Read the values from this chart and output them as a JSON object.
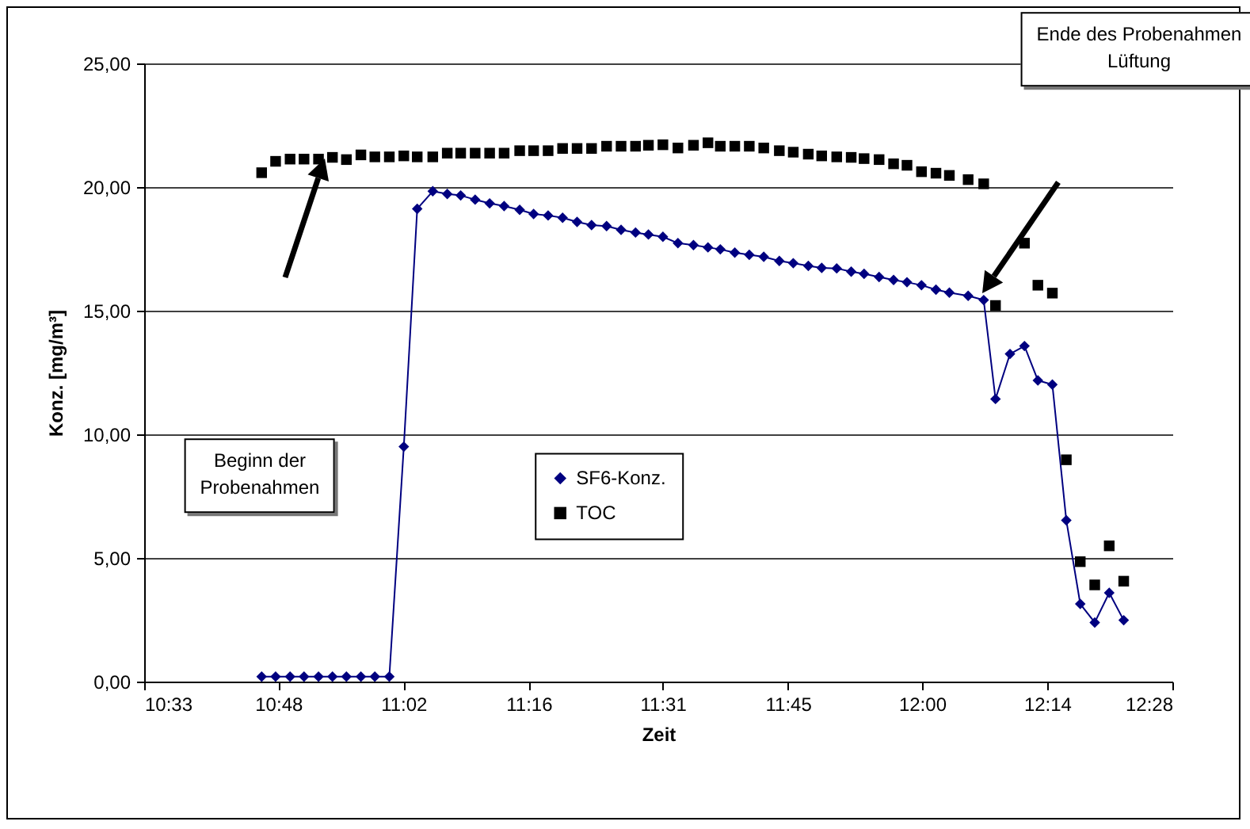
{
  "chart_data": {
    "type": "line",
    "xlabel": "Zeit",
    "ylabel": "Konz. [mg/m³]",
    "x": [
      10.769,
      10.795,
      10.822,
      10.848,
      10.875,
      10.901,
      10.927,
      10.954,
      10.98,
      11.007,
      11.034,
      11.059,
      11.088,
      11.115,
      11.14,
      11.167,
      11.194,
      11.221,
      11.25,
      11.276,
      11.303,
      11.33,
      11.357,
      11.384,
      11.412,
      11.439,
      11.466,
      11.49,
      11.517,
      11.545,
      11.574,
      11.601,
      11.624,
      11.651,
      11.678,
      11.705,
      11.734,
      11.76,
      11.788,
      11.813,
      11.841,
      11.868,
      11.892,
      11.92,
      11.947,
      11.972,
      11.999,
      12.026,
      12.051,
      12.086,
      12.115,
      12.137,
      12.164,
      12.191,
      12.216,
      12.243,
      12.269,
      12.295,
      12.322,
      12.349,
      12.376
    ],
    "series": [
      {
        "name": "SF6-Konz.",
        "type": "line",
        "marker": "diamond",
        "color": "#000080",
        "values": [
          0.2,
          0.2,
          0.2,
          0.2,
          0.2,
          0.2,
          0.2,
          0.2,
          0.2,
          0.2,
          9.5,
          19.12,
          19.83,
          19.72,
          19.66,
          19.49,
          19.34,
          19.23,
          19.08,
          18.91,
          18.85,
          18.76,
          18.59,
          18.46,
          18.42,
          18.27,
          18.16,
          18.08,
          17.99,
          17.73,
          17.65,
          17.56,
          17.48,
          17.35,
          17.26,
          17.18,
          17.01,
          16.92,
          16.81,
          16.73,
          16.71,
          16.58,
          16.49,
          16.36,
          16.24,
          16.15,
          16.03,
          15.85,
          15.73,
          15.6,
          15.43,
          11.43,
          13.25,
          13.57,
          12.18,
          12.01,
          6.52,
          3.14,
          2.39,
          3.59,
          2.48
        ]
      },
      {
        "name": "TOC",
        "type": "scatter",
        "marker": "square",
        "color": "#000000",
        "values": [
          20.58,
          21.04,
          21.13,
          21.13,
          21.13,
          21.2,
          21.11,
          21.3,
          21.22,
          21.22,
          21.26,
          21.22,
          21.22,
          21.37,
          21.37,
          21.37,
          21.37,
          21.37,
          21.47,
          21.47,
          21.47,
          21.56,
          21.56,
          21.56,
          21.65,
          21.65,
          21.65,
          21.69,
          21.71,
          21.58,
          21.69,
          21.79,
          21.65,
          21.65,
          21.65,
          21.58,
          21.47,
          21.41,
          21.33,
          21.26,
          21.22,
          21.2,
          21.15,
          21.11,
          20.94,
          20.88,
          20.62,
          20.56,
          20.47,
          20.3,
          20.13,
          15.21,
          null,
          17.73,
          16.03,
          15.71,
          8.97,
          4.85,
          3.91,
          5.49,
          4.06
        ]
      }
    ],
    "xlim": [
      10.55,
      12.4667
    ],
    "xticks": [
      {
        "value": 10.55,
        "label": "10:33"
      },
      {
        "value": 10.8,
        "label": "10:48"
      },
      {
        "value": 11.0333,
        "label": "11:02"
      },
      {
        "value": 11.2667,
        "label": "11:16"
      },
      {
        "value": 11.5167,
        "label": "11:31"
      },
      {
        "value": 11.75,
        "label": "11:45"
      },
      {
        "value": 12,
        "label": "12:00"
      },
      {
        "value": 12.2333,
        "label": "12:14"
      },
      {
        "value": 12.4667,
        "label": "12:28"
      }
    ],
    "ylim": [
      0,
      25
    ],
    "yticks": [
      {
        "value": 0,
        "label": "0,00"
      },
      {
        "value": 5,
        "label": "5,00"
      },
      {
        "value": 10,
        "label": "10,00"
      },
      {
        "value": 15,
        "label": "15,00"
      },
      {
        "value": 20,
        "label": "20,00"
      },
      {
        "value": 25,
        "label": "25,00"
      }
    ],
    "grid": "y",
    "legend": "center",
    "annotations": [
      "Beginn der\nProbenahmen",
      "Ende des Probenahmen\nLüftung"
    ]
  }
}
